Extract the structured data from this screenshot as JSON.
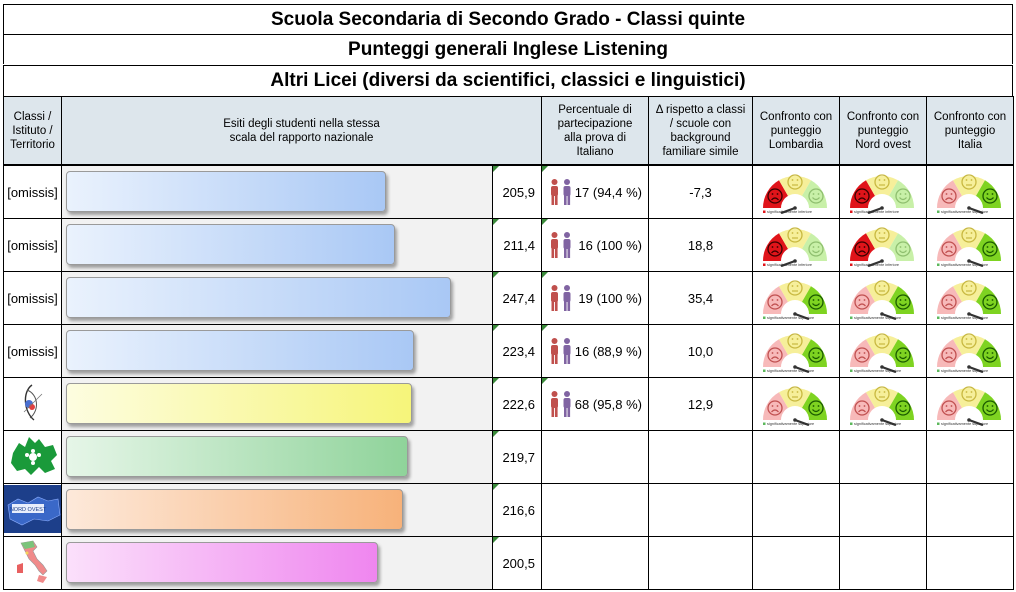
{
  "titles": {
    "line1": "Scuola Secondaria di Secondo Grado - Classi quinte",
    "line2": "Punteggi generali Inglese Listening",
    "line3": "Altri Licei (diversi da scientifici, classici e linguistici)"
  },
  "headers": {
    "col1": "Classi / Istituto / Territorio",
    "col2": "Esiti degli studenti nella stessa scala del rapporto nazionale",
    "col3": "Percentuale di partecipazione alla prova di Italiano",
    "col4": "Δ rispetto a classi / scuole con background familiare simile",
    "col5": "Confronto con punteggio Lombardia",
    "col6": "Confronto con punteggio Nord ovest",
    "col7": "Confronto con punteggio Italia"
  },
  "gauge_captions": {
    "inferiore": "significativamente inferiore",
    "superiore": "significativamente superiore"
  },
  "colors": {
    "header_bg": "#dde6ec",
    "bar_blue": "#a9c8f5",
    "bar_yellow": "#f6f57a",
    "bar_green": "#8fd39a",
    "bar_orange": "#f7b27a",
    "bar_pink": "#ef86ef"
  },
  "scale_max": 270,
  "rows": [
    {
      "label": "[omissis]",
      "score": 205.9,
      "score_text": "205,9",
      "participation": "17 (94,4 %)",
      "delta": "-7,3",
      "bar_color": "blue",
      "gauges": [
        {
          "result": "inferiore"
        },
        {
          "result": "inferiore"
        },
        {
          "result": "superiore"
        }
      ]
    },
    {
      "label": "[omissis]",
      "score": 211.4,
      "score_text": "211,4",
      "participation": "16 (100 %)",
      "delta": "18,8",
      "bar_color": "blue",
      "gauges": [
        {
          "result": "inferiore"
        },
        {
          "result": "inferiore"
        },
        {
          "result": "superiore"
        }
      ]
    },
    {
      "label": "[omissis]",
      "score": 247.4,
      "score_text": "247,4",
      "participation": "19 (100 %)",
      "delta": "35,4",
      "bar_color": "blue",
      "gauges": [
        {
          "result": "superiore"
        },
        {
          "result": "superiore"
        },
        {
          "result": "superiore"
        }
      ]
    },
    {
      "label": "[omissis]",
      "score": 223.4,
      "score_text": "223,4",
      "participation": "16 (88,9 %)",
      "delta": "10,0",
      "bar_color": "blue",
      "gauges": [
        {
          "result": "superiore"
        },
        {
          "result": "superiore"
        },
        {
          "result": "superiore"
        }
      ]
    },
    {
      "label": "",
      "icon": "school-logo-icon",
      "score": 222.6,
      "score_text": "222,6",
      "participation": "68 (95,8 %)",
      "delta": "12,9",
      "bar_color": "yellow",
      "gauges": [
        {
          "result": "superiore"
        },
        {
          "result": "superiore"
        },
        {
          "result": "superiore"
        }
      ]
    },
    {
      "label": "",
      "icon": "lombardia-map-icon",
      "score": 219.7,
      "score_text": "219,7",
      "participation": "",
      "delta": "",
      "bar_color": "green",
      "gauges": []
    },
    {
      "label": "",
      "icon": "nord-ovest-map-icon",
      "map_text": "NORD OVEST",
      "score": 216.6,
      "score_text": "216,6",
      "participation": "",
      "delta": "",
      "bar_color": "orange",
      "gauges": []
    },
    {
      "label": "",
      "icon": "italia-map-icon",
      "score": 200.5,
      "score_text": "200,5",
      "participation": "",
      "delta": "",
      "bar_color": "pink",
      "gauges": []
    }
  ]
}
